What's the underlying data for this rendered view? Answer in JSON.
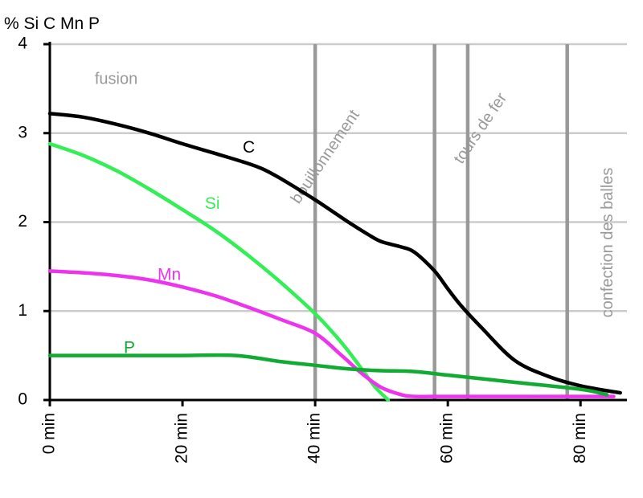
{
  "chart_data": {
    "type": "line",
    "ylabel": "% Si C Mn P",
    "xlabel": "",
    "xlim": [
      0,
      87
    ],
    "ylim": [
      0,
      4
    ],
    "x_ticks": [
      0,
      20,
      40,
      60,
      80
    ],
    "x_tick_labels": [
      "0 min",
      "20 min",
      "40 min",
      "60 min",
      "80 min"
    ],
    "y_ticks": [
      0,
      1,
      2,
      3,
      4
    ],
    "y_tick_labels": [
      "0",
      "1",
      "2",
      "3",
      "4"
    ],
    "grid": "horizontal",
    "phase_boundaries": [
      40,
      58,
      63,
      78
    ],
    "phase_labels": [
      {
        "text": "fusion",
        "x": 10.0,
        "y": 3.6,
        "rotate": 0
      },
      {
        "text": "bouillonnement",
        "x": 41.6,
        "y": 2.73,
        "rotate": -56
      },
      {
        "text": "tours de fer",
        "x": 65.0,
        "y": 3.05,
        "rotate": -56
      },
      {
        "text": "confection des balles",
        "x": 84.2,
        "y": 1.77,
        "rotate": -90
      }
    ],
    "series": [
      {
        "name": "C",
        "color": "#000000",
        "label_pos": [
          30.0,
          2.83
        ],
        "x": [
          0,
          5,
          10,
          15,
          20,
          25,
          29,
          32,
          35,
          40,
          45,
          48,
          50,
          53,
          55,
          58,
          60,
          62,
          65,
          70,
          75,
          80,
          86
        ],
        "y": [
          3.22,
          3.18,
          3.1,
          3.0,
          2.88,
          2.77,
          2.68,
          2.6,
          2.48,
          2.25,
          2.0,
          1.86,
          1.78,
          1.72,
          1.66,
          1.45,
          1.25,
          1.06,
          0.82,
          0.45,
          0.27,
          0.16,
          0.08
        ]
      },
      {
        "name": "Si",
        "color": "#33ee55",
        "label_pos": [
          24.5,
          2.2
        ],
        "x": [
          0,
          5,
          10,
          15,
          20,
          25,
          30,
          35,
          40,
          43,
          45,
          47,
          49,
          51
        ],
        "y": [
          2.88,
          2.75,
          2.58,
          2.37,
          2.14,
          1.9,
          1.62,
          1.31,
          0.97,
          0.73,
          0.55,
          0.35,
          0.15,
          0.0
        ]
      },
      {
        "name": "Mn",
        "color": "#ee33ee",
        "label_pos": [
          18.0,
          1.4
        ],
        "x": [
          0,
          5,
          10,
          15,
          20,
          25,
          30,
          35,
          40,
          44,
          47,
          50,
          53,
          55,
          60,
          70,
          80,
          85
        ],
        "y": [
          1.45,
          1.43,
          1.4,
          1.35,
          1.27,
          1.17,
          1.04,
          0.9,
          0.75,
          0.5,
          0.3,
          0.14,
          0.06,
          0.04,
          0.04,
          0.04,
          0.04,
          0.04
        ]
      },
      {
        "name": "P",
        "color": "#11aa33",
        "label_pos": [
          12.0,
          0.58
        ],
        "x": [
          0,
          10,
          20,
          28,
          35,
          40,
          45,
          50,
          55,
          60,
          70,
          80,
          84
        ],
        "y": [
          0.5,
          0.5,
          0.5,
          0.5,
          0.43,
          0.39,
          0.35,
          0.33,
          0.32,
          0.28,
          0.2,
          0.12,
          0.06
        ]
      }
    ]
  }
}
